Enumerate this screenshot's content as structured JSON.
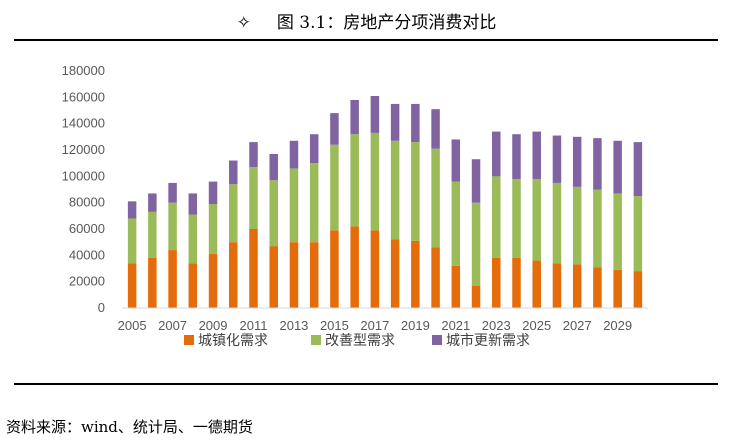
{
  "figure": {
    "marker": "✧",
    "title": "图 3.1：房地产分项消费对比",
    "source": "资料来源：wind、统计局、一德期货"
  },
  "chart_data": {
    "type": "bar",
    "stacked": true,
    "categories": [
      "2005",
      "2006",
      "2007",
      "2008",
      "2009",
      "2010",
      "2011",
      "2012",
      "2013",
      "2014",
      "2015",
      "2016",
      "2017",
      "2018",
      "2019",
      "2020",
      "2021",
      "2022",
      "2023",
      "2024",
      "2025",
      "2026",
      "2027",
      "2028",
      "2029",
      "2030"
    ],
    "x_tick_labels": [
      "2005",
      "2007",
      "2009",
      "2011",
      "2013",
      "2015",
      "2017",
      "2019",
      "2021",
      "2023",
      "2025",
      "2027",
      "2029"
    ],
    "y_tick_labels": [
      "0",
      "20000",
      "40000",
      "60000",
      "80000",
      "100000",
      "120000",
      "140000",
      "160000",
      "180000"
    ],
    "ylim": [
      0,
      180000
    ],
    "grid": false,
    "legend_position": "bottom",
    "series": [
      {
        "name": "城镇化需求",
        "color": "#E46C0A",
        "values": [
          34000,
          38000,
          44000,
          34000,
          41000,
          50000,
          60000,
          47000,
          50000,
          50000,
          59000,
          62000,
          59000,
          52000,
          51000,
          46000,
          32000,
          17000,
          38000,
          38000,
          36000,
          34000,
          33000,
          31000,
          29000,
          28000
        ]
      },
      {
        "name": "改善型需求",
        "color": "#9BBB59",
        "values": [
          34000,
          35000,
          36000,
          37000,
          38000,
          44000,
          47000,
          50000,
          56000,
          60000,
          65000,
          70000,
          74000,
          75000,
          75000,
          75000,
          64000,
          63000,
          62000,
          60000,
          62000,
          61000,
          59000,
          59000,
          58000,
          57000
        ]
      },
      {
        "name": "城市更新需求",
        "color": "#8064A2",
        "values": [
          13000,
          14000,
          15000,
          16000,
          17000,
          18000,
          19000,
          20000,
          21000,
          22000,
          24000,
          26000,
          28000,
          28000,
          29000,
          30000,
          32000,
          33000,
          34000,
          34000,
          36000,
          36000,
          38000,
          39000,
          40000,
          41000
        ]
      }
    ]
  }
}
